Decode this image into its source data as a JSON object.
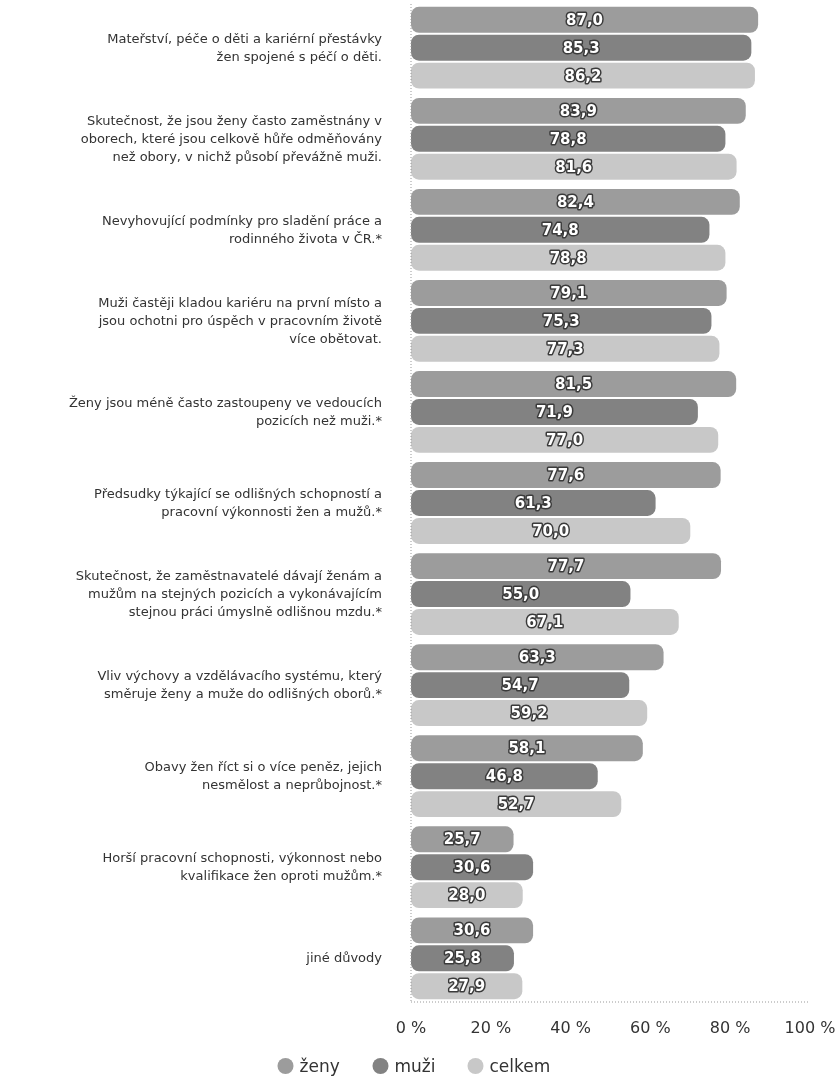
{
  "chart_data": {
    "type": "bar",
    "orientation": "horizontal",
    "categories": [
      "Mateřství, péče o děti a kariérní přestávky žen spojené s péčí o děti.",
      "Skutečnost, že jsou ženy často zaměstnány v oborech, které jsou celkově hůře odměňovány než obory, v nichž působí převážně muži.",
      "Nevyhovující podmínky pro sladění práce a rodinného života v ČR.*",
      "Muži častěji kladou kariéru na první místo a jsou ochotni pro úspěch v pracovním životě více obětovat.",
      "Ženy jsou méně často zastoupeny ve vedoucích pozicích než muži.*",
      "Předsudky týkající se odlišných schopností a pracovní výkonnosti žen a mužů.*",
      "Skutečnost, že zaměstnavatelé dávají ženám a mužům na stejných pozicích a vykonávajícím stejnou práci úmyslně odlišnou mzdu.*",
      "Vliv výchovy a vzdělávacího systému, který směruje ženy a muže do odlišných oborů.*",
      "Obavy žen říct si o více peněz, jejich nesmělost a neprůbojnost.*",
      "Horší pracovní schopnosti, výkonnost nebo kvalifikace žen oproti mužům.*",
      "jiné důvody"
    ],
    "series": [
      {
        "name": "ženy",
        "color": "#9c9c9c",
        "values": [
          87.0,
          83.9,
          82.4,
          79.1,
          81.5,
          77.6,
          77.7,
          63.3,
          58.1,
          25.7,
          30.6
        ],
        "value_labels": [
          "87,0",
          "83,9",
          "82,4",
          "79,1",
          "81,5",
          "77,6",
          "77,7",
          "63,3",
          "58,1",
          "25,7",
          "30,6"
        ]
      },
      {
        "name": "muži",
        "color": "#828282",
        "values": [
          85.3,
          78.8,
          74.8,
          75.3,
          71.9,
          61.3,
          55.0,
          54.7,
          46.8,
          30.6,
          25.8
        ],
        "value_labels": [
          "85,3",
          "78,8",
          "74,8",
          "75,3",
          "71,9",
          "61,3",
          "55,0",
          "54,7",
          "46,8",
          "30,6",
          "25,8"
        ]
      },
      {
        "name": "celkem",
        "color": "#c8c8c8",
        "values": [
          86.2,
          81.6,
          78.8,
          77.3,
          77.0,
          70.0,
          67.1,
          59.2,
          52.7,
          28.0,
          27.9
        ],
        "value_labels": [
          "86,2",
          "81,6",
          "78,8",
          "77,3",
          "77,0",
          "70,0",
          "67,1",
          "59,2",
          "52,7",
          "28,0",
          "27,9"
        ]
      }
    ],
    "xlim": [
      0,
      100
    ],
    "xticks": [
      {
        "value": 0,
        "label": "0 %"
      },
      {
        "value": 20,
        "label": "20 %"
      },
      {
        "value": 40,
        "label": "40 %"
      },
      {
        "value": 60,
        "label": "60 %"
      },
      {
        "value": 80,
        "label": "80 %"
      },
      {
        "value": 100,
        "label": "100 %"
      }
    ],
    "legend": "bottom"
  }
}
